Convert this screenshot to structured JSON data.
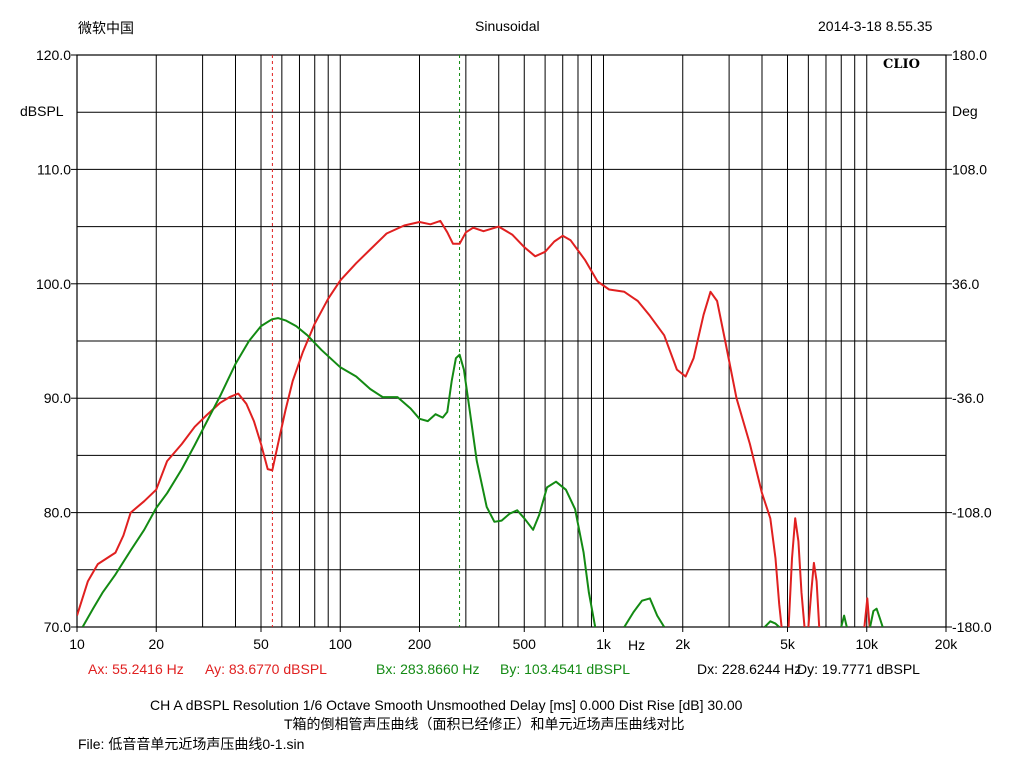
{
  "header": {
    "left": "微软中国",
    "center": "Sinusoidal",
    "right": "2014-3-18 8.55.35",
    "logo": "CLIO"
  },
  "chart_data": {
    "type": "line",
    "x_scale": "log",
    "xlim": [
      10,
      20000
    ],
    "ylim": [
      70,
      120
    ],
    "y2lim": [
      -180,
      180
    ],
    "grid": true,
    "ylabel": "dBSPL",
    "y2label": "Deg",
    "x_unit_label": "Hz",
    "y_ticks": [
      {
        "v": 70,
        "label": "70.0"
      },
      {
        "v": 80,
        "label": "80.0"
      },
      {
        "v": 90,
        "label": "90.0"
      },
      {
        "v": 100,
        "label": "100.0"
      },
      {
        "v": 110,
        "label": "110.0"
      },
      {
        "v": 120,
        "label": "120.0"
      }
    ],
    "y2_ticks": [
      {
        "v": -180,
        "label": "-180.0"
      },
      {
        "v": -108,
        "label": "-108.0"
      },
      {
        "v": -36,
        "label": "-36.0"
      },
      {
        "v": 36,
        "label": "36.0"
      },
      {
        "v": 108,
        "label": "108.0"
      },
      {
        "v": 180,
        "label": "180.0"
      }
    ],
    "x_ticks": [
      {
        "v": 10,
        "label": "10"
      },
      {
        "v": 20,
        "label": "20"
      },
      {
        "v": 50,
        "label": "50"
      },
      {
        "v": 100,
        "label": "100"
      },
      {
        "v": 200,
        "label": "200"
      },
      {
        "v": 500,
        "label": "500"
      },
      {
        "v": 1000,
        "label": "1k"
      },
      {
        "v": 2000,
        "label": "2k"
      },
      {
        "v": 5000,
        "label": "5k"
      },
      {
        "v": 10000,
        "label": "10k"
      },
      {
        "v": 20000,
        "label": "20k"
      }
    ],
    "cursors": [
      {
        "freq": 55.24,
        "color": "#e02020"
      },
      {
        "freq": 283.87,
        "color": "#138a13"
      }
    ],
    "series": [
      {
        "color": "#e02020",
        "segments": [
          [
            [
              10,
              71
            ],
            [
              11,
              74
            ],
            [
              12,
              75.5
            ],
            [
              14,
              76.5
            ],
            [
              15,
              78
            ],
            [
              16,
              80
            ],
            [
              18,
              81
            ],
            [
              20,
              82
            ],
            [
              22,
              84.5
            ],
            [
              25,
              86
            ],
            [
              28,
              87.5
            ],
            [
              31,
              88.5
            ],
            [
              35,
              89.6
            ],
            [
              38,
              90.1
            ],
            [
              41,
              90.4
            ],
            [
              44,
              89.5
            ],
            [
              47,
              88
            ],
            [
              50,
              86
            ],
            [
              53,
              83.8
            ],
            [
              55.2,
              83.7
            ],
            [
              58,
              86
            ],
            [
              62,
              89
            ],
            [
              66,
              91.5
            ],
            [
              72,
              94
            ],
            [
              80,
              96.5
            ],
            [
              90,
              98.7
            ],
            [
              100,
              100.3
            ],
            [
              115,
              101.8
            ],
            [
              130,
              103
            ],
            [
              150,
              104.4
            ],
            [
              175,
              105.1
            ],
            [
              200,
              105.4
            ],
            [
              220,
              105.2
            ],
            [
              240,
              105.5
            ],
            [
              255,
              104.5
            ],
            [
              268,
              103.5
            ],
            [
              284,
              103.5
            ],
            [
              300,
              104.5
            ],
            [
              320,
              104.9
            ],
            [
              350,
              104.6
            ],
            [
              400,
              105
            ],
            [
              450,
              104.3
            ],
            [
              500,
              103.2
            ],
            [
              550,
              102.4
            ],
            [
              600,
              102.8
            ],
            [
              650,
              103.7
            ],
            [
              700,
              104.2
            ],
            [
              750,
              103.8
            ],
            [
              850,
              102.1
            ],
            [
              950,
              100.2
            ],
            [
              1050,
              99.5
            ],
            [
              1200,
              99.3
            ],
            [
              1350,
              98.5
            ],
            [
              1500,
              97.2
            ],
            [
              1700,
              95.5
            ],
            [
              1900,
              92.5
            ],
            [
              2050,
              91.9
            ],
            [
              2200,
              93.5
            ],
            [
              2400,
              97.3
            ],
            [
              2550,
              99.3
            ],
            [
              2700,
              98.5
            ],
            [
              2900,
              95
            ],
            [
              3200,
              90
            ],
            [
              3600,
              86
            ],
            [
              4000,
              81.7
            ],
            [
              4300,
              79.5
            ],
            [
              4500,
              76
            ],
            [
              4650,
              72
            ],
            [
              4750,
              70
            ]
          ],
          [
            [
              5050,
              70
            ],
            [
              5200,
              76
            ],
            [
              5350,
              79.5
            ],
            [
              5500,
              77.5
            ],
            [
              5650,
              73
            ],
            [
              5800,
              70
            ]
          ],
          [
            [
              6000,
              70
            ],
            [
              6150,
              73
            ],
            [
              6300,
              75.6
            ],
            [
              6450,
              74
            ],
            [
              6600,
              70
            ]
          ],
          [
            [
              9800,
              70
            ],
            [
              10050,
              72.5
            ],
            [
              10250,
              70
            ]
          ]
        ]
      },
      {
        "color": "#138a13",
        "segments": [
          [
            [
              10.5,
              70
            ],
            [
              11.5,
              71.6
            ],
            [
              12.5,
              73
            ],
            [
              14,
              74.6
            ],
            [
              16,
              76.7
            ],
            [
              18,
              78.5
            ],
            [
              20,
              80.4
            ],
            [
              22,
              81.7
            ],
            [
              25,
              83.8
            ],
            [
              28,
              85.9
            ],
            [
              32,
              88.5
            ],
            [
              35,
              90.2
            ],
            [
              40,
              93
            ],
            [
              45,
              95
            ],
            [
              50,
              96.3
            ],
            [
              55,
              96.9
            ],
            [
              58,
              97
            ],
            [
              62,
              96.8
            ],
            [
              68,
              96.3
            ],
            [
              75,
              95.5
            ],
            [
              85,
              94.2
            ],
            [
              100,
              92.7
            ],
            [
              115,
              91.9
            ],
            [
              130,
              90.8
            ],
            [
              145,
              90.1
            ],
            [
              165,
              90.1
            ],
            [
              185,
              89.1
            ],
            [
              200,
              88.2
            ],
            [
              215,
              88
            ],
            [
              230,
              88.6
            ],
            [
              245,
              88.3
            ],
            [
              255,
              88.8
            ],
            [
              265,
              91.5
            ],
            [
              275,
              93.5
            ],
            [
              284,
              93.8
            ],
            [
              295,
              92.5
            ],
            [
              310,
              89
            ],
            [
              330,
              84.5
            ],
            [
              360,
              80.5
            ],
            [
              385,
              79.2
            ],
            [
              410,
              79.3
            ],
            [
              440,
              79.9
            ],
            [
              470,
              80.2
            ],
            [
              500,
              79.5
            ],
            [
              540,
              78.5
            ],
            [
              570,
              79.8
            ],
            [
              610,
              82.2
            ],
            [
              660,
              82.7
            ],
            [
              720,
              82
            ],
            [
              780,
              80.3
            ],
            [
              840,
              76.5
            ],
            [
              880,
              73
            ],
            [
              930,
              70
            ]
          ],
          [
            [
              1200,
              70
            ],
            [
              1300,
              71.3
            ],
            [
              1400,
              72.3
            ],
            [
              1500,
              72.5
            ],
            [
              1600,
              71
            ],
            [
              1700,
              70
            ]
          ],
          [
            [
              4100,
              70
            ],
            [
              4300,
              70.5
            ],
            [
              4500,
              70.3
            ],
            [
              4650,
              70
            ]
          ],
          [
            [
              8000,
              70
            ],
            [
              8200,
              71
            ],
            [
              8400,
              70
            ]
          ],
          [
            [
              10300,
              70
            ],
            [
              10600,
              71.4
            ],
            [
              10900,
              71.6
            ],
            [
              11200,
              70.8
            ],
            [
              11500,
              70
            ]
          ]
        ]
      }
    ]
  },
  "cursor_readout": {
    "ax": "Ax: 55.2416 Hz",
    "ay": "Ay: 83.6770 dBSPL",
    "bx": "Bx: 283.8660 Hz",
    "by": "By: 103.4541 dBSPL",
    "dx": "Dx: 228.6244 Hz",
    "dy": "Dy: 19.7771 dBSPL"
  },
  "footer": {
    "settings": "CH A   dBSPL   Resolution 1/6 Octave   Smooth Unsmoothed   Delay [ms] 0.000   Dist Rise [dB] 30.00",
    "title": "T箱的倒相管声压曲线（面积已经修正）和单元近场声压曲线对比",
    "file": "File: 低音音单元近场声压曲线0-1.sin"
  }
}
